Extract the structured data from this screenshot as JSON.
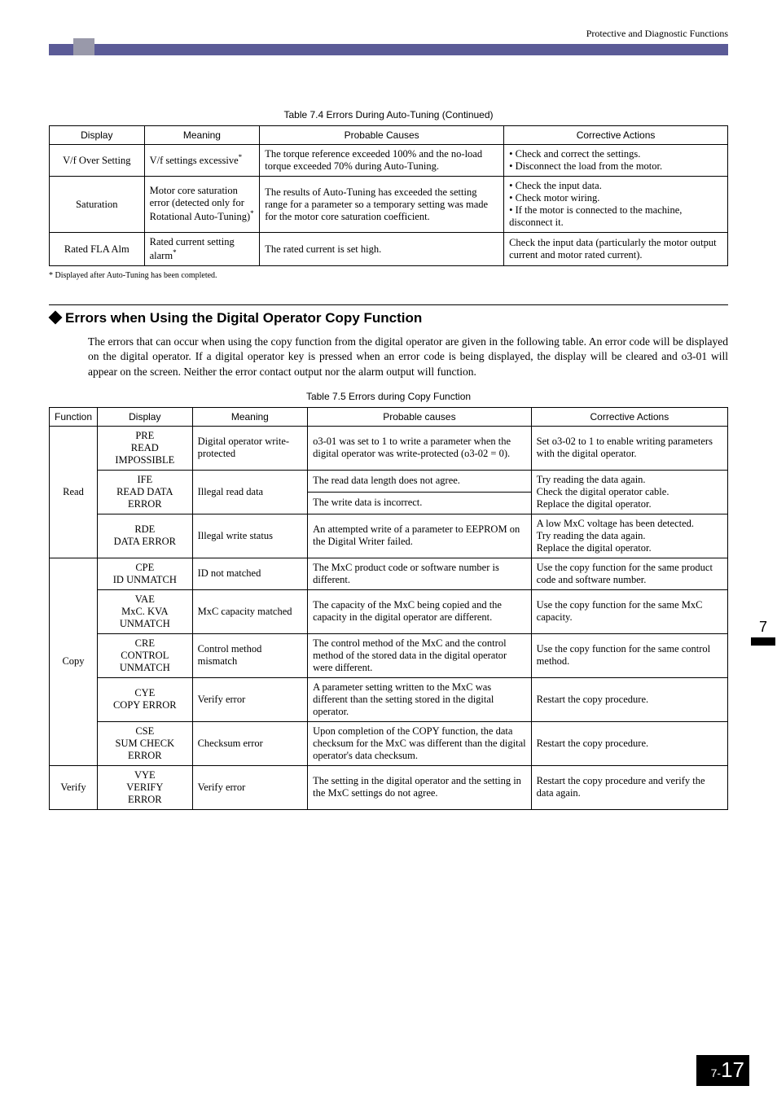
{
  "header": {
    "title": "Protective and Diagnostic Functions"
  },
  "table1": {
    "caption": "Table 7.4  Errors During Auto-Tuning (Continued)",
    "headers": [
      "Display",
      "Meaning",
      "Probable Causes",
      "Corrective Actions"
    ],
    "rows": [
      {
        "display": "V/f Over Setting",
        "meaning": "V/f settings excessive",
        "meaning_sup": "*",
        "causes": "The torque reference exceeded 100% and the no-load torque exceeded 70% during Auto-Tuning.",
        "actions": [
          "Check and correct the settings.",
          "Disconnect the load from the motor."
        ]
      },
      {
        "display": "Saturation",
        "meaning": "Motor core saturation error (detected only for Rotational Auto-Tuning)",
        "meaning_sup": "*",
        "causes": "The results of Auto-Tuning has exceeded the setting range for a parameter so a temporary setting was made for the motor core saturation coefficient.",
        "actions": [
          "Check the input data.",
          "Check motor wiring.",
          "If the motor is connected to the machine, disconnect it."
        ]
      },
      {
        "display": "Rated FLA Alm",
        "meaning": "Rated current setting alarm",
        "meaning_sup": "*",
        "causes": "The rated current is set high.",
        "actions_text": "Check the input data (particularly the motor output current and motor rated current)."
      }
    ],
    "footnote": "*   Displayed after Auto-Tuning has been completed."
  },
  "section": {
    "title": "Errors when Using the Digital Operator Copy Function",
    "body": "The errors that can occur when using the copy function from the digital operator are given in the following table. An error code will be displayed on the digital operator. If a digital operator key is pressed when an error code is being displayed, the display will be cleared and o3-01 will appear on the screen. Neither the error contact output nor the alarm output will function."
  },
  "table2": {
    "caption": "Table 7.5  Errors during Copy Function",
    "headers": [
      "Function",
      "Display",
      "Meaning",
      "Probable causes",
      "Corrective Actions"
    ],
    "groups": [
      {
        "func": "Read",
        "rows": [
          {
            "display": [
              "PRE",
              "READ",
              "IMPOSSIBLE"
            ],
            "meaning": "Digital operator write-protected",
            "causes": "o3-01 was set to 1 to write a parameter when the digital operator was write-protected (o3-02 = 0).",
            "actions": "Set o3-02 to 1 to enable writing parameters with the digital operator."
          },
          {
            "display": [
              "IFE",
              "READ DATA",
              "ERROR"
            ],
            "meaning": "Illegal read data",
            "causes_split": [
              "The read data length does not agree.",
              "The write data is incorrect."
            ],
            "actions": "Try reading the data again.\nCheck the digital operator cable.\nReplace the digital operator."
          },
          {
            "display": [
              "RDE",
              "DATA ERROR"
            ],
            "meaning": "Illegal write status",
            "causes": "An attempted write of a parameter to EEPROM on the Digital Writer failed.",
            "actions": "A low MxC voltage has been detected.\nTry reading the data again.\nReplace the digital operator."
          }
        ]
      },
      {
        "func": "Copy",
        "rows": [
          {
            "display": [
              "CPE",
              "ID UNMATCH"
            ],
            "meaning": "ID not matched",
            "causes": "The MxC product code or software number is different.",
            "actions": "Use the copy function for the same product code and software number."
          },
          {
            "display": [
              "VAE",
              "MxC. KVA",
              "UNMATCH"
            ],
            "meaning": "MxC capacity matched",
            "causes": "The capacity of the MxC being copied and the capacity in the digital operator are different.",
            "actions": "Use the copy function for the same MxC capacity."
          },
          {
            "display": [
              "CRE",
              "CONTROL",
              "UNMATCH"
            ],
            "meaning": "Control method mismatch",
            "causes": "The control method of the MxC and the control method of the stored data in the digital operator were different.",
            "actions": "Use the copy function for the same control method."
          },
          {
            "display": [
              "CYE",
              "COPY ERROR"
            ],
            "meaning": "Verify error",
            "causes": "A parameter setting written to the MxC was different than the setting stored in the digital operator.",
            "actions": "Restart the copy procedure."
          },
          {
            "display": [
              "CSE",
              "SUM CHECK",
              "ERROR"
            ],
            "meaning": "Checksum error",
            "causes": "Upon completion of the COPY function, the data checksum for the MxC was different than the digital operator's data checksum.",
            "actions": "Restart the copy procedure."
          }
        ]
      },
      {
        "func": "Verify",
        "rows": [
          {
            "display": [
              "VYE",
              "VERIFY",
              "ERROR"
            ],
            "meaning": "Verify error",
            "causes": "The setting in the digital operator and the setting in the MxC settings do not agree.",
            "actions": "Restart the copy procedure and verify the data again."
          }
        ]
      }
    ]
  },
  "sideTab": {
    "num": "7"
  },
  "pageNum": {
    "chapter": "7-",
    "page": "17"
  },
  "colWidths": {
    "t1": [
      "14%",
      "17%",
      "36%",
      "33%"
    ],
    "t2": [
      "7%",
      "14%",
      "17%",
      "33%",
      "29%"
    ]
  }
}
